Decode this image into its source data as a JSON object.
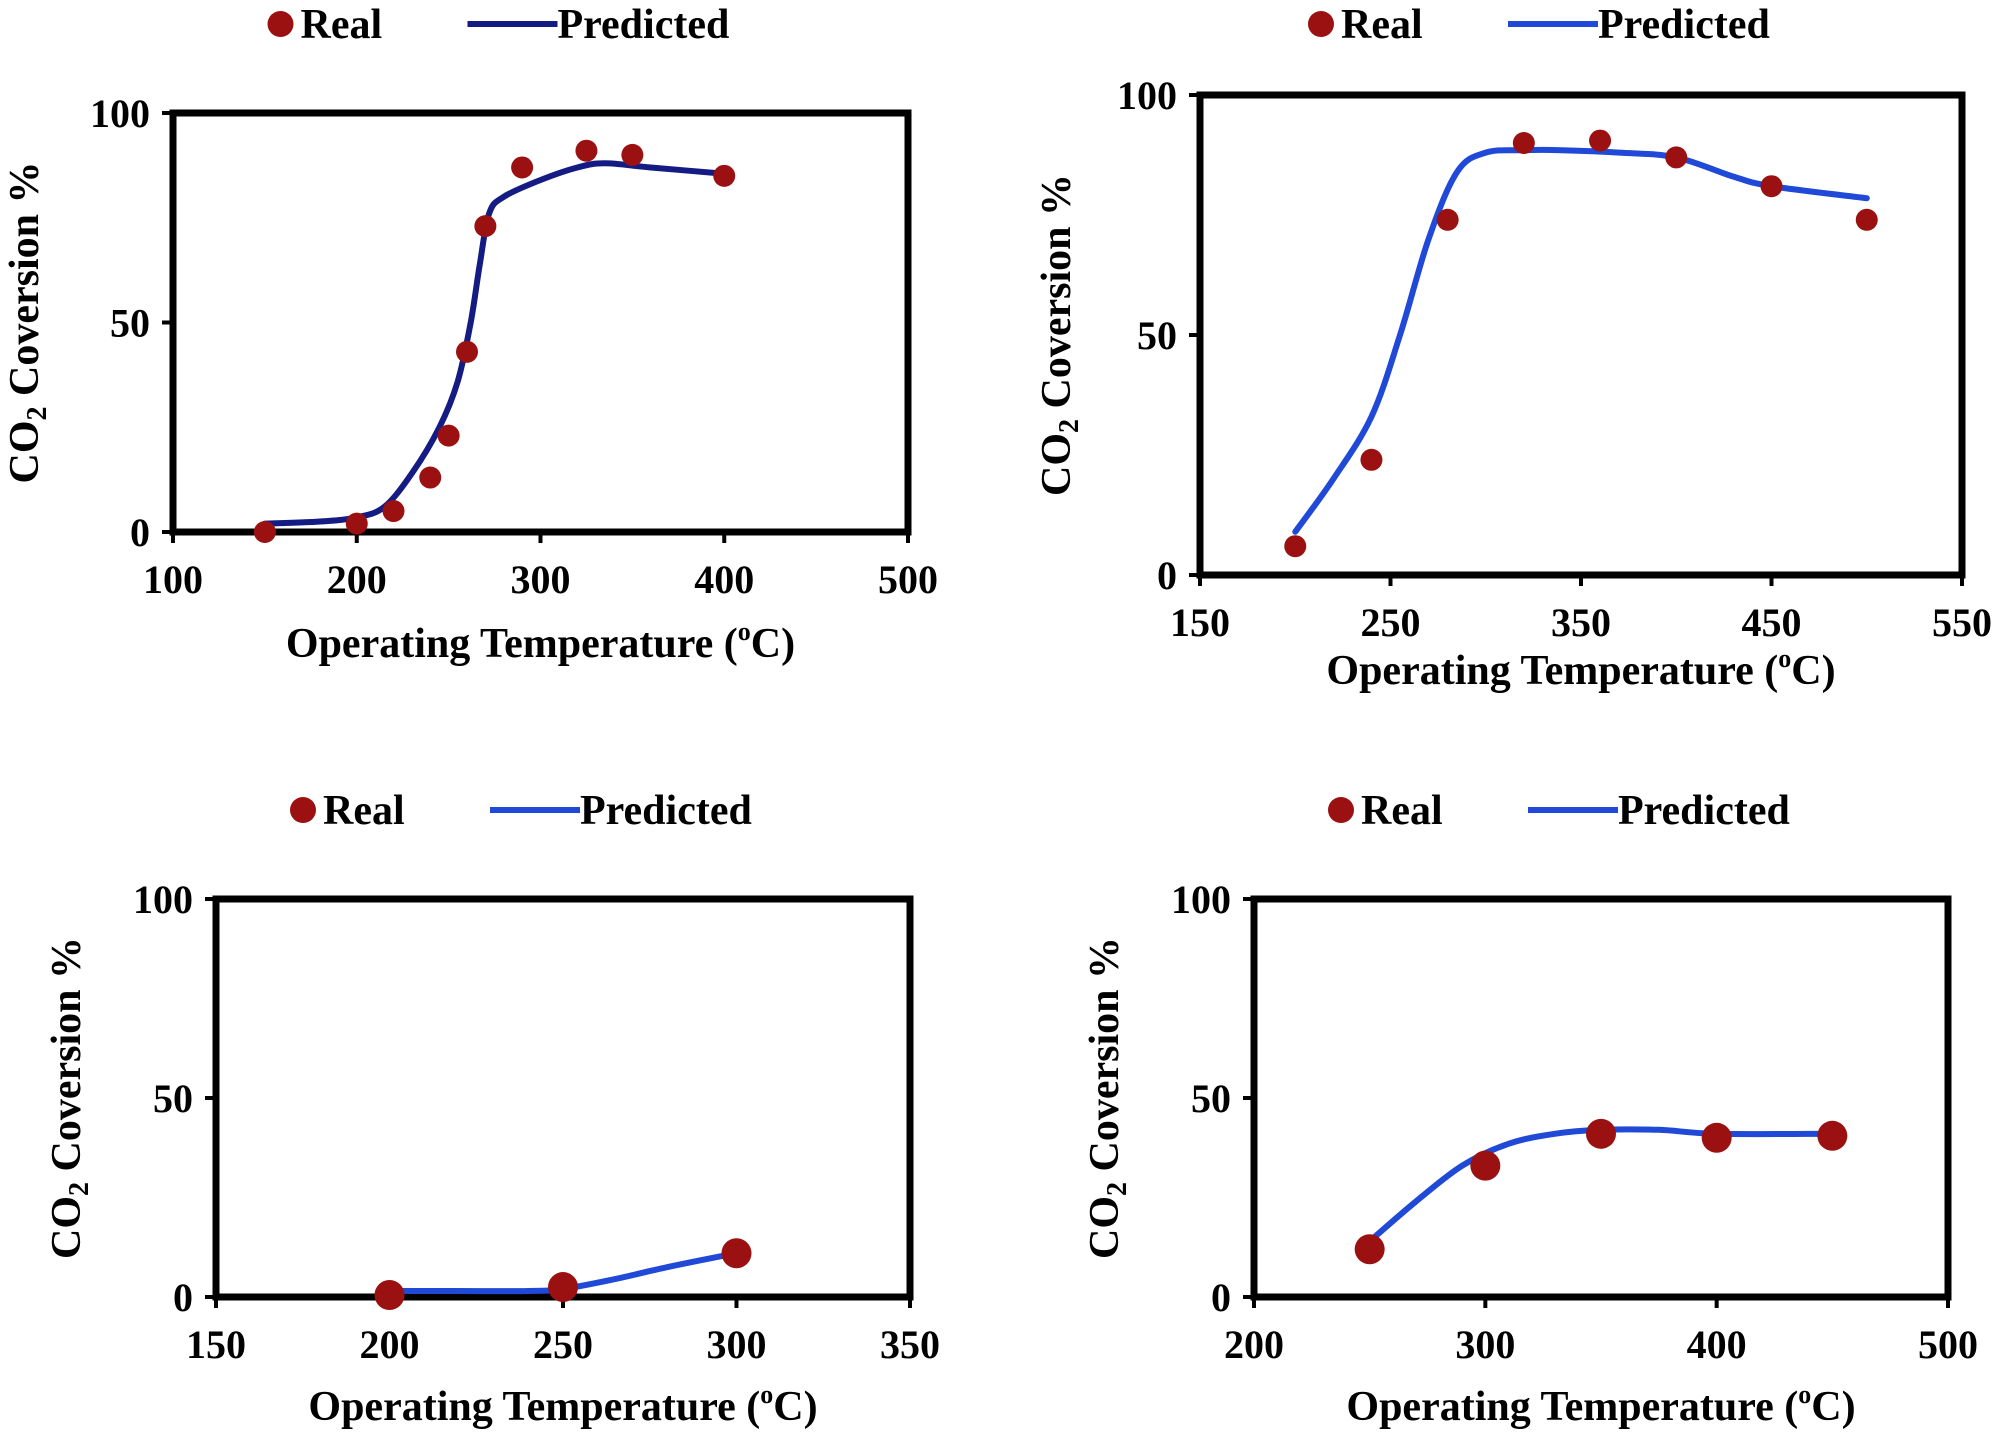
{
  "colors": {
    "real_marker": "#9b1111",
    "predicted_line_panel1": "#141b82",
    "predicted_line": "#1f49d6",
    "frame": "#000000"
  },
  "chart_data": [
    {
      "type": "scatter",
      "legend": {
        "real": "Real",
        "predicted": "Predicted",
        "placement": "top-center"
      },
      "xlabel": {
        "main": "Operating Temperature (",
        "sup": "o",
        "tail": "C)"
      },
      "ylabel": {
        "main": "CO",
        "sub": "2",
        "tail": " Coversion %"
      },
      "xlim": [
        100,
        500
      ],
      "ylim": [
        0,
        100
      ],
      "xticks": [
        "100",
        "200",
        "300",
        "400",
        "500"
      ],
      "yticks": [
        "0",
        "50",
        "100"
      ],
      "real": {
        "x": [
          150,
          200,
          220,
          240,
          250,
          260,
          270,
          290,
          325,
          350,
          400
        ],
        "y": [
          0,
          2,
          5,
          13,
          23,
          43,
          73,
          87,
          91,
          90,
          85
        ]
      },
      "predicted": {
        "x": [
          150,
          180,
          200,
          215,
          230,
          245,
          255,
          262,
          267,
          272,
          280,
          300,
          320,
          335,
          360,
          400
        ],
        "y": [
          2,
          2.5,
          3.5,
          6,
          14,
          25,
          36,
          50,
          64,
          76,
          80,
          84,
          87,
          88,
          87,
          85.5
        ]
      }
    },
    {
      "type": "scatter",
      "legend": {
        "real": "Real",
        "predicted": "Predicted",
        "placement": "top-center"
      },
      "xlabel": {
        "main": "Operating Temperature (",
        "sup": "o",
        "tail": "C)"
      },
      "ylabel": {
        "main": "CO",
        "sub": "2",
        "tail": " Coversion %"
      },
      "xlim": [
        150,
        550
      ],
      "ylim": [
        0,
        100
      ],
      "xticks": [
        "150",
        "250",
        "350",
        "450",
        "550"
      ],
      "yticks": [
        "0",
        "50",
        "100"
      ],
      "real": {
        "x": [
          200,
          240,
          280,
          320,
          360,
          400,
          450,
          500
        ],
        "y": [
          6,
          24,
          74,
          90,
          90.5,
          87,
          81,
          74
        ]
      },
      "predicted": {
        "x": [
          200,
          220,
          240,
          255,
          270,
          285,
          300,
          320,
          340,
          370,
          400,
          430,
          450,
          500
        ],
        "y": [
          9,
          20,
          33,
          50,
          70,
          84,
          88,
          88.5,
          88.5,
          88,
          87,
          83,
          81,
          78.5
        ]
      }
    },
    {
      "type": "scatter",
      "legend": {
        "real": "Real",
        "predicted": "Predicted",
        "placement": "top-center"
      },
      "xlabel": {
        "main": "Operating Temperature (",
        "sup": "o",
        "tail": "C)"
      },
      "ylabel": {
        "main": "CO",
        "sub": "2",
        "tail": " Coversion %"
      },
      "xlim": [
        150,
        350
      ],
      "ylim": [
        0,
        100
      ],
      "xticks": [
        "150",
        "200",
        "250",
        "300",
        "350"
      ],
      "yticks": [
        "0",
        "50",
        "100"
      ],
      "real": {
        "x": [
          200,
          250,
          300
        ],
        "y": [
          0.5,
          2.5,
          11
        ]
      },
      "predicted": {
        "x": [
          200,
          220,
          240,
          250,
          265,
          280,
          300
        ],
        "y": [
          1.5,
          1.5,
          1.5,
          2,
          4.5,
          7.5,
          11
        ]
      }
    },
    {
      "type": "scatter",
      "legend": {
        "real": "Real",
        "predicted": "Predicted",
        "placement": "top-center"
      },
      "xlabel": {
        "main": "Operating Temperature (",
        "sup": "o",
        "tail": "C)"
      },
      "ylabel": {
        "main": "CO",
        "sub": "2",
        "tail": " Coversion %"
      },
      "xlim": [
        200,
        500
      ],
      "ylim": [
        0,
        100
      ],
      "xticks": [
        "200",
        "300",
        "400",
        "500"
      ],
      "yticks": [
        "0",
        "50",
        "100"
      ],
      "real": {
        "x": [
          250,
          300,
          350,
          400,
          450
        ],
        "y": [
          12,
          33,
          41,
          40,
          40.5
        ]
      },
      "predicted": {
        "x": [
          250,
          270,
          290,
          310,
          330,
          350,
          375,
          400,
          450
        ],
        "y": [
          14,
          24,
          33,
          38.5,
          41,
          42,
          42,
          41,
          41
        ]
      }
    }
  ]
}
